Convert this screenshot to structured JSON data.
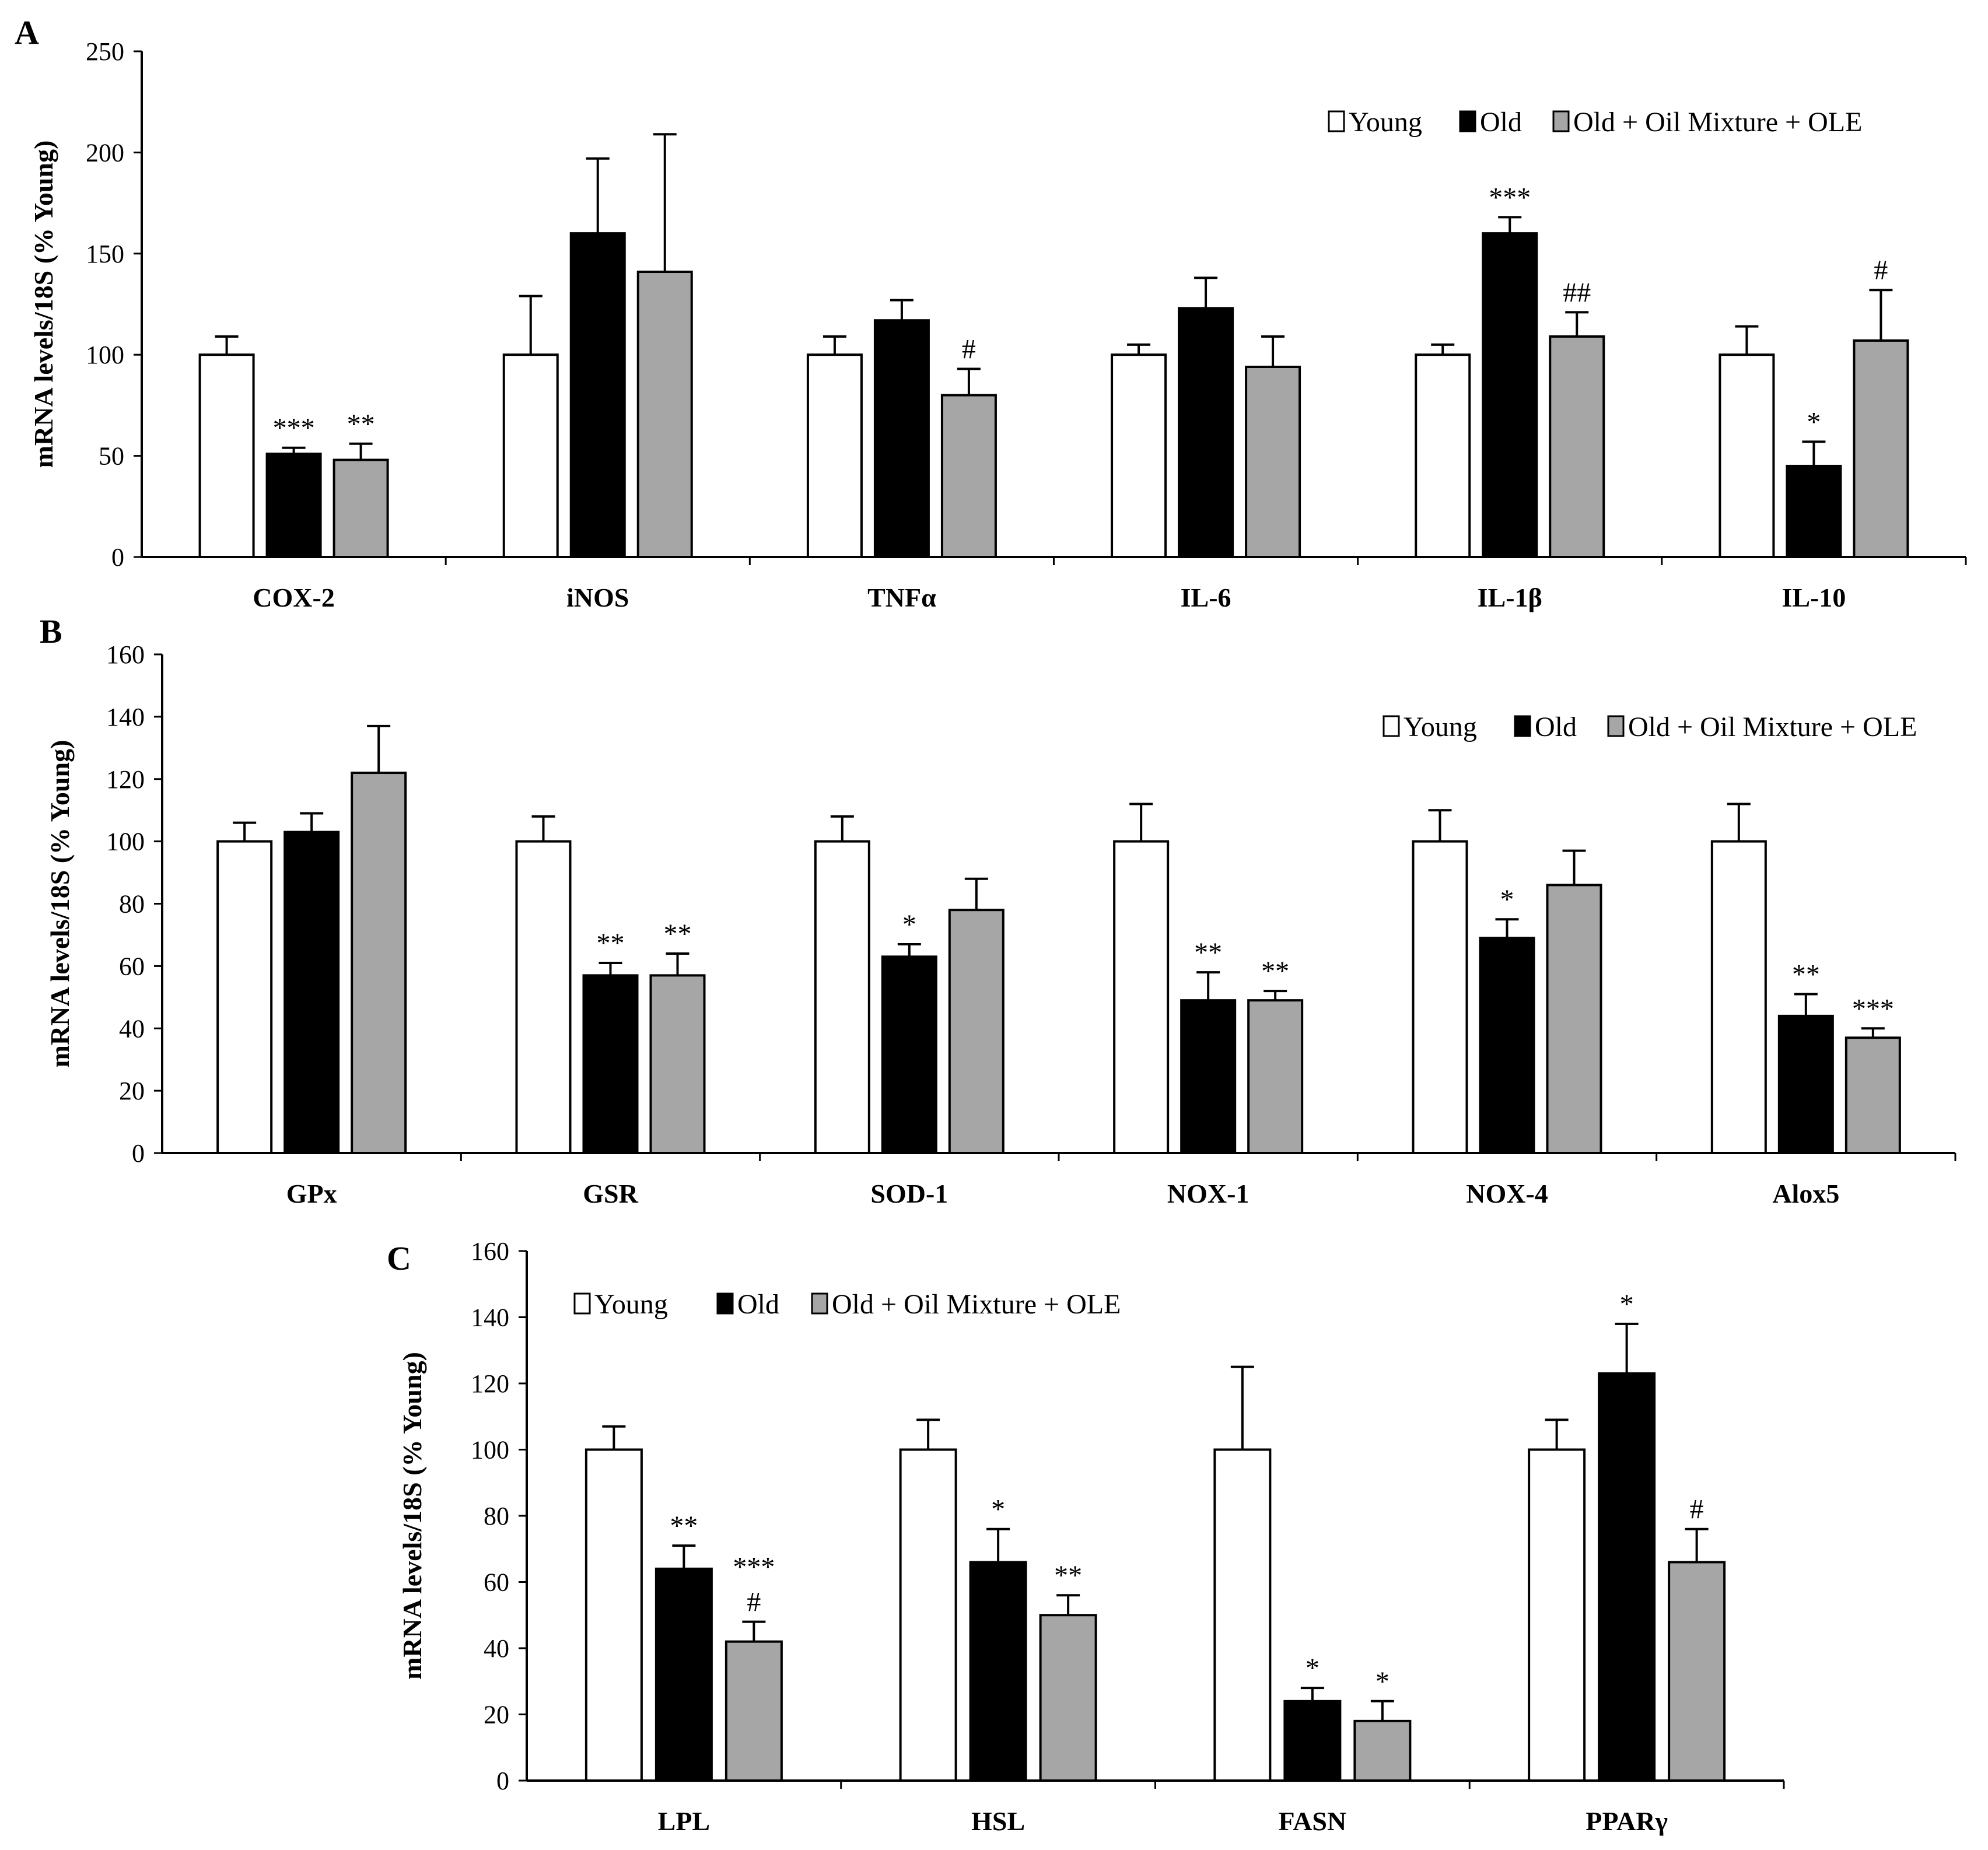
{
  "figure": {
    "colors": {
      "Young": "#ffffff",
      "Old": "#000000",
      "Old + Oil Mixture + OLE": "#a6a6a6",
      "axis": "#000000"
    }
  },
  "chart_data": [
    {
      "panel": "A",
      "type": "bar",
      "ylabel": "mRNA levels/18S (% Young)",
      "ylim": [
        0,
        250
      ],
      "yticks": [
        0,
        50,
        100,
        150,
        200,
        250
      ],
      "legend": [
        "Young",
        "Old",
        "Old + Oil Mixture + OLE"
      ],
      "legend_position": "top-right",
      "categories": [
        "COX-2",
        "iNOS",
        "TNFα",
        "IL-6",
        "IL-1β",
        "IL-10"
      ],
      "series": [
        {
          "name": "Young",
          "values": [
            100,
            100,
            100,
            100,
            100,
            100
          ],
          "errors": [
            9,
            29,
            9,
            5,
            5,
            14
          ],
          "annotations": [
            "",
            "",
            "",
            "",
            "",
            ""
          ]
        },
        {
          "name": "Old",
          "values": [
            51,
            160,
            117,
            123,
            160,
            45
          ],
          "errors": [
            3,
            37,
            10,
            15,
            8,
            12
          ],
          "annotations": [
            "***",
            "",
            "",
            "",
            "***",
            "*"
          ]
        },
        {
          "name": "Old + Oil Mixture + OLE",
          "values": [
            48,
            141,
            80,
            94,
            109,
            107
          ],
          "errors": [
            8,
            68,
            13,
            15,
            12,
            25
          ],
          "annotations": [
            "**",
            "",
            "#",
            "",
            "##",
            "#"
          ]
        }
      ]
    },
    {
      "panel": "B",
      "type": "bar",
      "ylabel": "mRNA levels/18S (% Young)",
      "ylim": [
        0,
        160
      ],
      "yticks": [
        0,
        20,
        40,
        60,
        80,
        100,
        120,
        140,
        160
      ],
      "legend": [
        "Young",
        "Old",
        "Old + Oil Mixture + OLE"
      ],
      "legend_position": "top-right",
      "categories": [
        "GPx",
        "GSR",
        "SOD-1",
        "NOX-1",
        "NOX-4",
        "Alox5"
      ],
      "series": [
        {
          "name": "Young",
          "values": [
            100,
            100,
            100,
            100,
            100,
            100
          ],
          "errors": [
            6,
            8,
            8,
            12,
            10,
            12
          ],
          "annotations": [
            "",
            "",
            "",
            "",
            "",
            ""
          ]
        },
        {
          "name": "Old",
          "values": [
            103,
            57,
            63,
            49,
            69,
            44
          ],
          "errors": [
            6,
            4,
            4,
            9,
            6,
            7
          ],
          "annotations": [
            "",
            "**",
            "*",
            "**",
            "*",
            "**"
          ]
        },
        {
          "name": "Old + Oil Mixture + OLE",
          "values": [
            122,
            57,
            78,
            49,
            86,
            37
          ],
          "errors": [
            15,
            7,
            10,
            3,
            11,
            3
          ],
          "annotations": [
            "",
            "**",
            "",
            "**",
            "",
            "***"
          ]
        }
      ]
    },
    {
      "panel": "C",
      "type": "bar",
      "ylabel": "mRNA levels/18S (% Young)",
      "ylim": [
        0,
        160
      ],
      "yticks": [
        0,
        20,
        40,
        60,
        80,
        100,
        120,
        140,
        160
      ],
      "legend": [
        "Young",
        "Old",
        "Old + Oil Mixture + OLE"
      ],
      "legend_position": "top-left",
      "categories": [
        "LPL",
        "HSL",
        "FASN",
        "PPARγ"
      ],
      "series": [
        {
          "name": "Young",
          "values": [
            100,
            100,
            100,
            100
          ],
          "errors": [
            7,
            9,
            25,
            9
          ],
          "annotations": [
            "",
            "",
            "",
            ""
          ]
        },
        {
          "name": "Old",
          "values": [
            64,
            66,
            24,
            123
          ],
          "errors": [
            7,
            10,
            4,
            15
          ],
          "annotations": [
            "**",
            "*",
            "*",
            "*"
          ]
        },
        {
          "name": "Old + Oil Mixture + OLE",
          "values": [
            42,
            50,
            18,
            66
          ],
          "errors": [
            6,
            6,
            6,
            10
          ],
          "annotations": [
            "***\n#",
            "**",
            "*",
            "#"
          ]
        }
      ]
    }
  ]
}
